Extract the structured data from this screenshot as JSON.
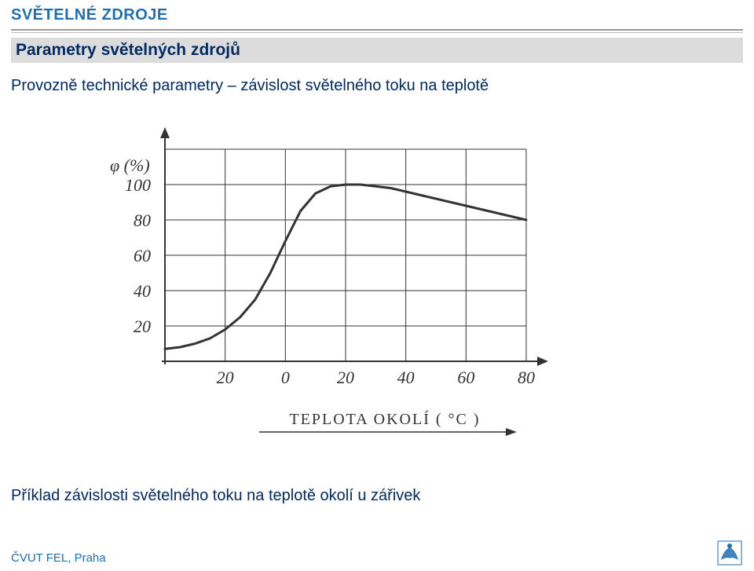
{
  "header": {
    "title": "SVĚTELNÉ ZDROJE",
    "subtitle": "Parametry světelných zdrojů"
  },
  "body": {
    "line1": "Provozně technické parametry – závislost světelného toku na teplotě"
  },
  "chart": {
    "type": "line",
    "y_label": "φ  (%)",
    "x_label": "TEPLOTA  OKOLÍ ( °C )",
    "y_ticks": [
      "20",
      "40",
      "60",
      "80",
      "100"
    ],
    "x_ticks": [
      "20",
      "0",
      "20",
      "40",
      "60",
      "80"
    ],
    "xlim": [
      -40,
      80
    ],
    "ylim": [
      0,
      120
    ],
    "grid_color": "#333333",
    "line_color": "#333333",
    "background_color": "#ffffff",
    "line_width": 2,
    "font_size_ticks": 22,
    "font_size_axis_label": 20,
    "curve": [
      [
        -40,
        7
      ],
      [
        -35,
        8
      ],
      [
        -30,
        10
      ],
      [
        -25,
        13
      ],
      [
        -20,
        18
      ],
      [
        -15,
        25
      ],
      [
        -10,
        35
      ],
      [
        -5,
        50
      ],
      [
        0,
        68
      ],
      [
        5,
        85
      ],
      [
        10,
        95
      ],
      [
        15,
        99
      ],
      [
        20,
        100
      ],
      [
        25,
        100
      ],
      [
        30,
        99
      ],
      [
        35,
        98
      ],
      [
        40,
        96
      ],
      [
        45,
        94
      ],
      [
        50,
        92
      ],
      [
        55,
        90
      ],
      [
        60,
        88
      ],
      [
        65,
        86
      ],
      [
        70,
        84
      ],
      [
        75,
        82
      ],
      [
        80,
        80
      ]
    ]
  },
  "caption": "Příklad závislosti světelného toku na teplotě okolí u zářivek",
  "footer": {
    "text": "ČVUT FEL, Praha"
  },
  "colors": {
    "header": "#1f6fb3",
    "subheader_bg": "#dcdcdc",
    "subheader_text": "#002b63",
    "body_text": "#002b63"
  }
}
